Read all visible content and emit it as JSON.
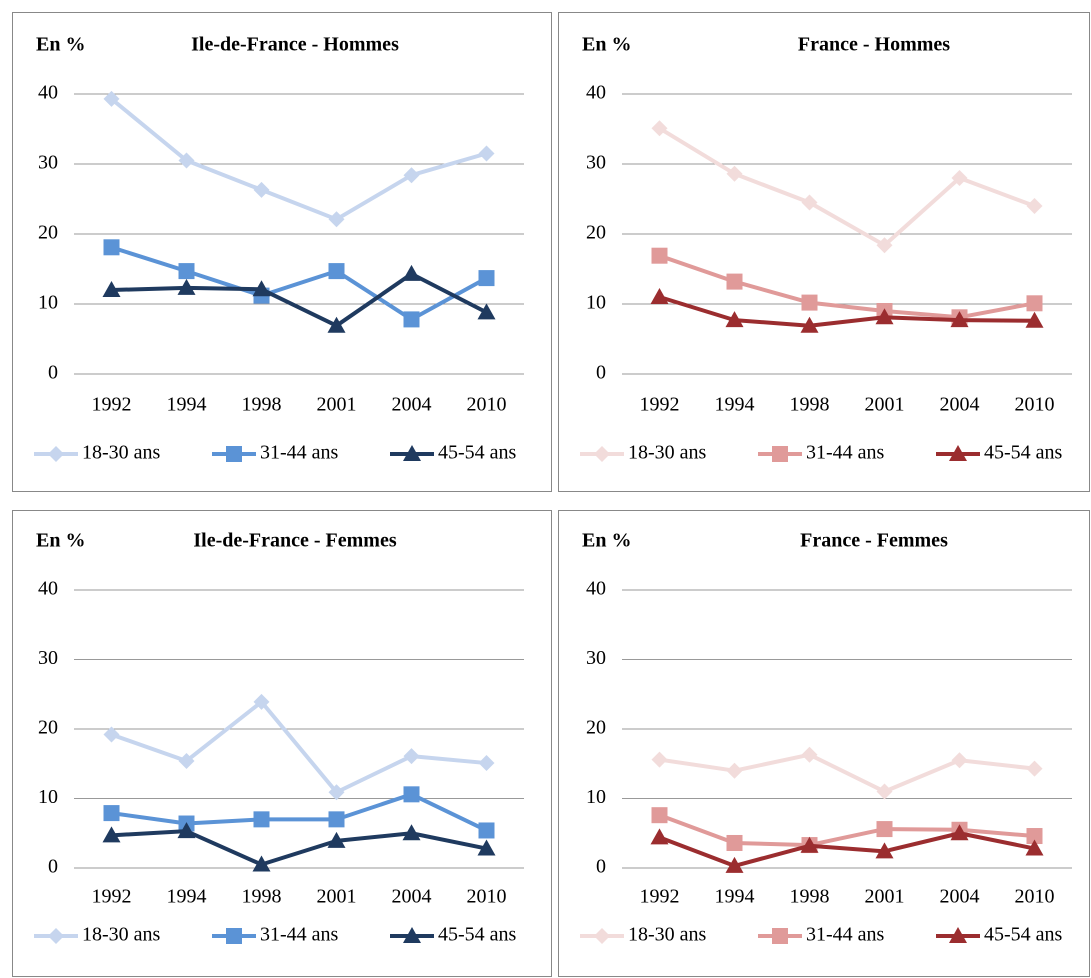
{
  "chart_data": [
    {
      "type": "line",
      "title": "Ile-de-France -  Hommes",
      "ylabel": "En %",
      "categories": [
        "1992",
        "1994",
        "1998",
        "2001",
        "2004",
        "2010"
      ],
      "ylim": [
        0,
        40
      ],
      "yticks": [
        0,
        10,
        20,
        30,
        40
      ],
      "grid": true,
      "series": [
        {
          "name": "18-30 ans",
          "color": "#c6d5ee",
          "marker": "diamond",
          "values": [
            39.3,
            30.5,
            26.3,
            22.1,
            28.4,
            31.5
          ]
        },
        {
          "name": "31-44 ans",
          "color": "#5b93d6",
          "marker": "square",
          "values": [
            18.1,
            14.7,
            11.2,
            14.7,
            7.8,
            13.7
          ]
        },
        {
          "name": "45-54 ans",
          "color": "#1f3a5f",
          "marker": "triangle",
          "values": [
            12.0,
            12.3,
            12.1,
            6.9,
            14.3,
            8.8
          ]
        }
      ]
    },
    {
      "type": "line",
      "title": "France - Hommes",
      "ylabel": "En %",
      "categories": [
        "1992",
        "1994",
        "1998",
        "2001",
        "2004",
        "2010"
      ],
      "ylim": [
        0,
        40
      ],
      "yticks": [
        0,
        10,
        20,
        30,
        40
      ],
      "grid": true,
      "series": [
        {
          "name": "18-30 ans",
          "color": "#f2dcdb",
          "marker": "diamond",
          "values": [
            35.1,
            28.6,
            24.5,
            18.4,
            28.0,
            24.0
          ]
        },
        {
          "name": "31-44 ans",
          "color": "#e09a99",
          "marker": "square",
          "values": [
            16.9,
            13.2,
            10.2,
            9.0,
            8.1,
            10.1
          ]
        },
        {
          "name": "45-54 ans",
          "color": "#9b2d2f",
          "marker": "triangle",
          "values": [
            11.0,
            7.7,
            6.9,
            8.1,
            7.7,
            7.6
          ]
        }
      ]
    },
    {
      "type": "line",
      "title": "Ile-de-France - Femmes",
      "ylabel": "En %",
      "categories": [
        "1992",
        "1994",
        "1998",
        "2001",
        "2004",
        "2010"
      ],
      "ylim": [
        0,
        40
      ],
      "yticks": [
        0,
        10,
        20,
        30,
        40
      ],
      "grid": true,
      "series": [
        {
          "name": "18-30 ans",
          "color": "#c6d5ee",
          "marker": "diamond",
          "values": [
            19.2,
            15.4,
            23.9,
            10.9,
            16.1,
            15.1
          ]
        },
        {
          "name": "31-44 ans",
          "color": "#5b93d6",
          "marker": "square",
          "values": [
            7.9,
            6.4,
            7.0,
            7.0,
            10.6,
            5.4
          ]
        },
        {
          "name": "45-54 ans",
          "color": "#1f3a5f",
          "marker": "triangle",
          "values": [
            4.7,
            5.3,
            0.5,
            3.9,
            5.0,
            2.8
          ]
        }
      ]
    },
    {
      "type": "line",
      "title": "France - Femmes",
      "ylabel": "En %",
      "categories": [
        "1992",
        "1994",
        "1998",
        "2001",
        "2004",
        "2010"
      ],
      "ylim": [
        0,
        40
      ],
      "yticks": [
        0,
        10,
        20,
        30,
        40
      ],
      "grid": true,
      "series": [
        {
          "name": "18-30 ans",
          "color": "#f2dcdb",
          "marker": "diamond",
          "values": [
            15.6,
            14.0,
            16.3,
            11.0,
            15.5,
            14.3
          ]
        },
        {
          "name": "31-44 ans",
          "color": "#e09a99",
          "marker": "square",
          "values": [
            7.6,
            3.6,
            3.3,
            5.6,
            5.5,
            4.6
          ]
        },
        {
          "name": "45-54 ans",
          "color": "#9b2d2f",
          "marker": "triangle",
          "values": [
            4.4,
            0.3,
            3.2,
            2.4,
            5.0,
            2.8
          ]
        }
      ]
    }
  ]
}
